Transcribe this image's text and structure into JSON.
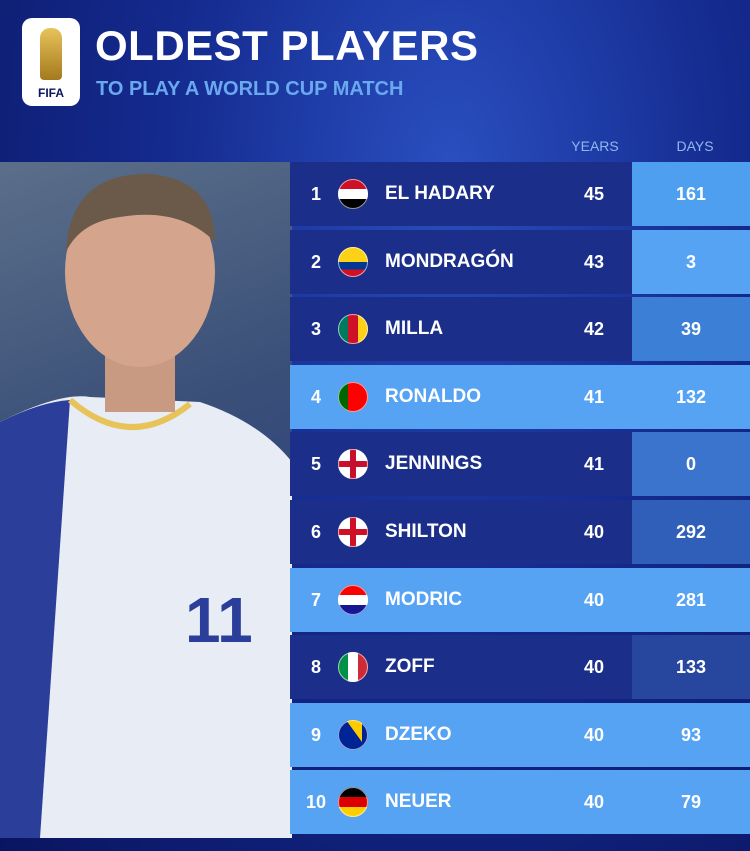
{
  "header": {
    "logo": "FIFA",
    "title": "OLDEST PLAYERS",
    "subtitle": "TO PLAY A WORLD CUP MATCH"
  },
  "table": {
    "columns": [
      "YEARS",
      "DAYS"
    ],
    "rows": [
      {
        "rank": 1,
        "name": "EL HADARY",
        "years": 45,
        "days": 161
      },
      {
        "rank": 2,
        "name": "MONDRAGÓN",
        "years": 43,
        "days": 3
      },
      {
        "rank": 3,
        "name": "MILLA",
        "years": 42,
        "days": 39
      },
      {
        "rank": 4,
        "name": "RONALDO",
        "years": 41,
        "days": 132
      },
      {
        "rank": 5,
        "name": "JENNINGS",
        "years": 41,
        "days": 0
      },
      {
        "rank": 6,
        "name": "SHILTON",
        "years": 40,
        "days": 292
      },
      {
        "rank": 7,
        "name": "MODRIC",
        "years": 40,
        "days": 281
      },
      {
        "rank": 8,
        "name": "ZOFF",
        "years": 40,
        "days": 133
      },
      {
        "rank": 9,
        "name": "DZEKO",
        "years": 40,
        "days": 93
      },
      {
        "rank": 10,
        "name": "NEUER",
        "years": 40,
        "days": 79
      }
    ]
  }
}
